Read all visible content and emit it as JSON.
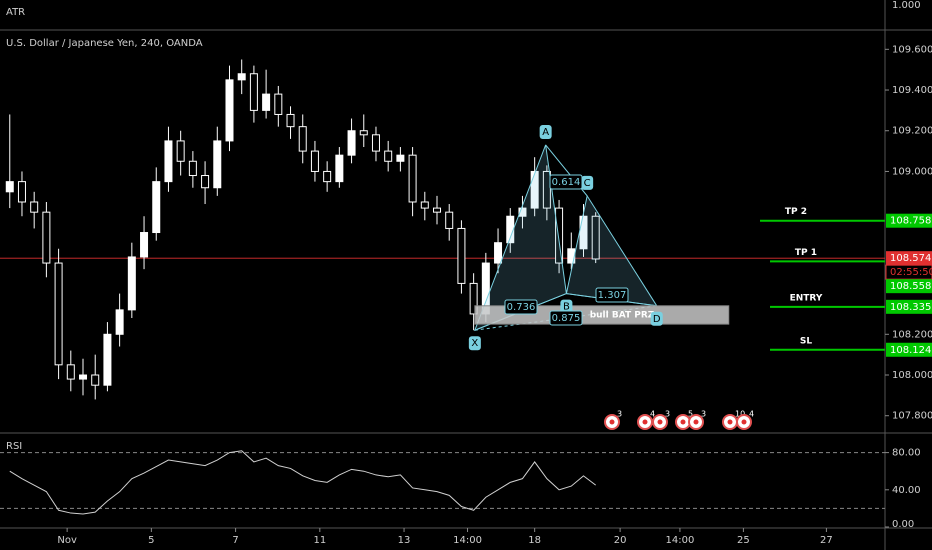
{
  "atr_pane": {
    "title": "ATR",
    "tick": "1.000"
  },
  "chart_data": [
    {
      "type": "candlestick",
      "title": "U.S. Dollar / Japanese Yen, 240, OANDA",
      "open": [
        108.9,
        108.95,
        108.85,
        108.8,
        108.55,
        108.05,
        107.98,
        108.0,
        107.95,
        108.2,
        108.32,
        108.58,
        108.7,
        108.95,
        109.15,
        109.05,
        108.98,
        108.92,
        109.15,
        109.45,
        109.48,
        109.3,
        109.38,
        109.28,
        109.22,
        109.1,
        109.0,
        108.95,
        109.08,
        109.2,
        109.18,
        109.1,
        109.05,
        109.08,
        108.85,
        108.82,
        108.8,
        108.72,
        108.45,
        108.3,
        108.55,
        108.65,
        108.78,
        108.82,
        109.0,
        108.82,
        108.55,
        108.62,
        108.78
      ],
      "high": [
        109.28,
        109.0,
        108.9,
        108.85,
        108.62,
        108.12,
        108.08,
        108.1,
        108.26,
        108.4,
        108.65,
        108.78,
        109.02,
        109.22,
        109.2,
        109.1,
        109.05,
        109.22,
        109.52,
        109.55,
        109.52,
        109.5,
        109.42,
        109.32,
        109.28,
        109.15,
        109.05,
        109.12,
        109.26,
        109.28,
        109.22,
        109.15,
        109.12,
        109.12,
        108.9,
        108.88,
        108.84,
        108.76,
        108.5,
        108.6,
        108.72,
        108.82,
        108.88,
        109.07,
        109.03,
        108.86,
        108.7,
        108.84,
        108.8
      ],
      "low": [
        108.82,
        108.78,
        108.72,
        108.48,
        107.98,
        107.92,
        107.9,
        107.88,
        107.92,
        108.14,
        108.28,
        108.52,
        108.66,
        108.9,
        108.98,
        108.92,
        108.84,
        108.88,
        109.1,
        109.38,
        109.24,
        109.26,
        109.22,
        109.16,
        109.04,
        108.95,
        108.9,
        108.92,
        109.04,
        109.12,
        109.05,
        109.0,
        109.0,
        108.78,
        108.76,
        108.74,
        108.66,
        108.4,
        108.22,
        108.26,
        108.5,
        108.6,
        108.72,
        108.78,
        108.76,
        108.5,
        108.52,
        108.58,
        108.55
      ],
      "close": [
        108.95,
        108.85,
        108.8,
        108.55,
        108.05,
        107.98,
        108.0,
        107.95,
        108.2,
        108.32,
        108.58,
        108.7,
        108.95,
        109.15,
        109.05,
        108.98,
        108.92,
        109.15,
        109.45,
        109.48,
        109.3,
        109.38,
        109.28,
        109.22,
        109.1,
        109.0,
        108.95,
        109.08,
        109.2,
        109.18,
        109.1,
        109.05,
        109.08,
        108.85,
        108.82,
        108.8,
        108.72,
        108.45,
        108.3,
        108.55,
        108.65,
        108.78,
        108.82,
        109.0,
        108.82,
        108.55,
        108.62,
        108.78,
        108.57
      ],
      "up_color": "#ffffff",
      "down_color": "#000000",
      "xlim": [
        -0.8,
        71.7
      ],
      "xticks": [
        {
          "value": 4.7,
          "label": "Nov"
        },
        {
          "value": 11.6,
          "label": "5"
        },
        {
          "value": 18.5,
          "label": "7"
        },
        {
          "value": 25.4,
          "label": "11"
        },
        {
          "value": 32.3,
          "label": "13"
        },
        {
          "value": 37.5,
          "label": "14:00"
        },
        {
          "value": 43.0,
          "label": "18"
        },
        {
          "value": 50.0,
          "label": "20"
        },
        {
          "value": 54.9,
          "label": "14:00"
        },
        {
          "value": 60.1,
          "label": "25"
        },
        {
          "value": 66.9,
          "label": "27"
        }
      ],
      "ylim": [
        107.72,
        109.69
      ],
      "yticks": [
        {
          "value": 109.6,
          "label": "109.600"
        },
        {
          "value": 109.4,
          "label": "109.400"
        },
        {
          "value": 109.2,
          "label": "109.200"
        },
        {
          "value": 109.0,
          "label": "109.000"
        },
        {
          "value": 108.2,
          "label": "108.200"
        },
        {
          "value": 108.0,
          "label": "108.000"
        },
        {
          "value": 107.8,
          "label": "107.800"
        }
      ],
      "current_price": 108.574,
      "current_color": "#e03030",
      "countdown": "02:55:50",
      "levels": [
        {
          "name": "TP 2",
          "value": 108.758
        },
        {
          "name": "TP 1",
          "value": 108.558
        },
        {
          "name": "ENTRY",
          "value": 108.335
        },
        {
          "name": "SL",
          "value": 108.124
        }
      ],
      "level_color": "#00c800",
      "pattern": {
        "points": [
          {
            "name": "X",
            "x": 38.1,
            "y": 108.22
          },
          {
            "name": "A",
            "x": 43.9,
            "y": 109.13
          },
          {
            "name": "B",
            "x": 45.6,
            "y": 108.4
          },
          {
            "name": "C",
            "x": 47.3,
            "y": 108.88
          },
          {
            "name": "D",
            "x": 53.0,
            "y": 108.34
          }
        ],
        "ratios": [
          "0.614",
          "0.736",
          "0.875",
          "1.307"
        ],
        "color": "#7ad0e0",
        "prz": {
          "label": "bull BAT PRZ",
          "x": [
            38.1,
            58.9
          ],
          "y": [
            108.25,
            108.34
          ]
        }
      },
      "events": [
        "3",
        "4",
        "3",
        "5",
        "3",
        "10",
        "4"
      ]
    },
    {
      "type": "line",
      "title": "RSI",
      "values": [
        60,
        52,
        45,
        38,
        18,
        15,
        14,
        16,
        28,
        38,
        52,
        58,
        65,
        72,
        70,
        68,
        66,
        72,
        80,
        82,
        70,
        74,
        66,
        63,
        55,
        50,
        48,
        56,
        62,
        60,
        56,
        54,
        56,
        42,
        40,
        38,
        34,
        22,
        18,
        32,
        40,
        48,
        52,
        70,
        52,
        40,
        44,
        55,
        45
      ],
      "color": "#d0d0d0",
      "ylim": [
        0,
        100
      ],
      "bands": [
        20,
        80
      ],
      "yticks": [
        {
          "value": 80,
          "label": "80.00"
        },
        {
          "value": 40,
          "label": "40.00"
        },
        {
          "value": 0,
          "label": "0.00"
        }
      ]
    }
  ]
}
